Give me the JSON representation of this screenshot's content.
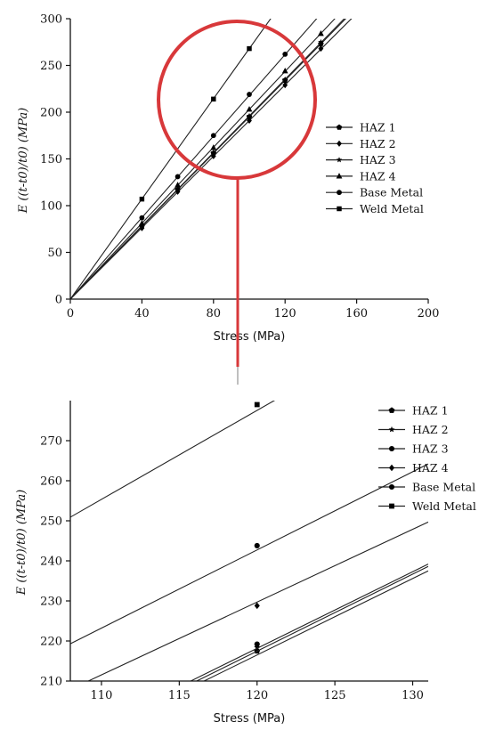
{
  "chart_data": [
    {
      "type": "line",
      "title": "",
      "xlabel": "Stress (MPa)",
      "ylabel": "E ((t-t0)/t0) (MPa)",
      "xlim": [
        0,
        200
      ],
      "ylim": [
        0,
        300
      ],
      "xticks": [
        0,
        40,
        80,
        120,
        160,
        200
      ],
      "yticks": [
        0,
        50,
        100,
        150,
        200,
        250,
        300
      ],
      "legend_position": "right",
      "highlight_circle": "red",
      "series": [
        {
          "name": "HAZ 1",
          "marker": "pentagon",
          "slope": 1.95,
          "x": [
            40,
            60,
            80,
            100,
            120,
            140
          ],
          "y": [
            78,
            117,
            156,
            195,
            234,
            273
          ]
        },
        {
          "name": "HAZ 2",
          "marker": "diamond",
          "slope": 1.91,
          "x": [
            40,
            60,
            80,
            100,
            120,
            140
          ],
          "y": [
            76,
            115,
            153,
            191,
            229,
            268
          ]
        },
        {
          "name": "HAZ 3",
          "marker": "star",
          "slope": 1.96,
          "x": [
            40,
            60,
            80,
            100,
            120,
            140
          ],
          "y": [
            79,
            118,
            157,
            196,
            235,
            275
          ]
        },
        {
          "name": "HAZ 4",
          "marker": "triangle",
          "slope": 2.03,
          "x": [
            40,
            60,
            80,
            100,
            120,
            140
          ],
          "y": [
            81,
            122,
            162,
            203,
            244,
            284
          ]
        },
        {
          "name": "Base Metal",
          "marker": "circle",
          "slope": 2.18,
          "x": [
            40,
            60,
            80,
            100,
            120
          ],
          "y": [
            87,
            131,
            175,
            219,
            262
          ]
        },
        {
          "name": "Weld Metal",
          "marker": "square",
          "slope": 2.68,
          "x": [
            40,
            80,
            100
          ],
          "y": [
            107,
            214,
            268
          ]
        }
      ]
    },
    {
      "type": "line",
      "title": "",
      "xlabel": "Stress (MPa)",
      "ylabel": "E ((t-t0)/t0) (MPa)",
      "xlim": [
        108,
        131
      ],
      "ylim": [
        210,
        280
      ],
      "xticks": [
        110,
        115,
        120,
        125,
        130
      ],
      "yticks": [
        210,
        220,
        230,
        240,
        250,
        260,
        270
      ],
      "legend_position": "top-right",
      "series": [
        {
          "name": "HAZ 1",
          "marker": "pentagon",
          "x": [
            120
          ],
          "y": [
            217.5
          ],
          "line_y": [
            193.6,
            237.5
          ]
        },
        {
          "name": "HAZ 2",
          "marker": "star",
          "x": [
            120
          ],
          "y": [
            218.4
          ],
          "line_y": [
            194.4,
            238.6
          ]
        },
        {
          "name": "HAZ 3",
          "marker": "circle",
          "x": [
            120
          ],
          "y": [
            219.2
          ],
          "line_y": [
            195.2,
            239.2
          ]
        },
        {
          "name": "HAZ 4",
          "marker": "diamond",
          "x": [
            120
          ],
          "y": [
            228.8
          ],
          "line_y": [
            207.9,
            249.7
          ]
        },
        {
          "name": "Base Metal",
          "marker": "circle",
          "x": [
            120
          ],
          "y": [
            243.8
          ],
          "line_y": [
            219.3,
            264.2
          ]
        },
        {
          "name": "Weld Metal",
          "marker": "square",
          "x": [
            120
          ],
          "y": [
            279.0
          ],
          "line_y": [
            250.9,
            302.0
          ]
        }
      ]
    }
  ],
  "colors": {
    "axis": "#111111",
    "line": "#222222",
    "marker": "#000000",
    "highlight": "#d8383a"
  }
}
